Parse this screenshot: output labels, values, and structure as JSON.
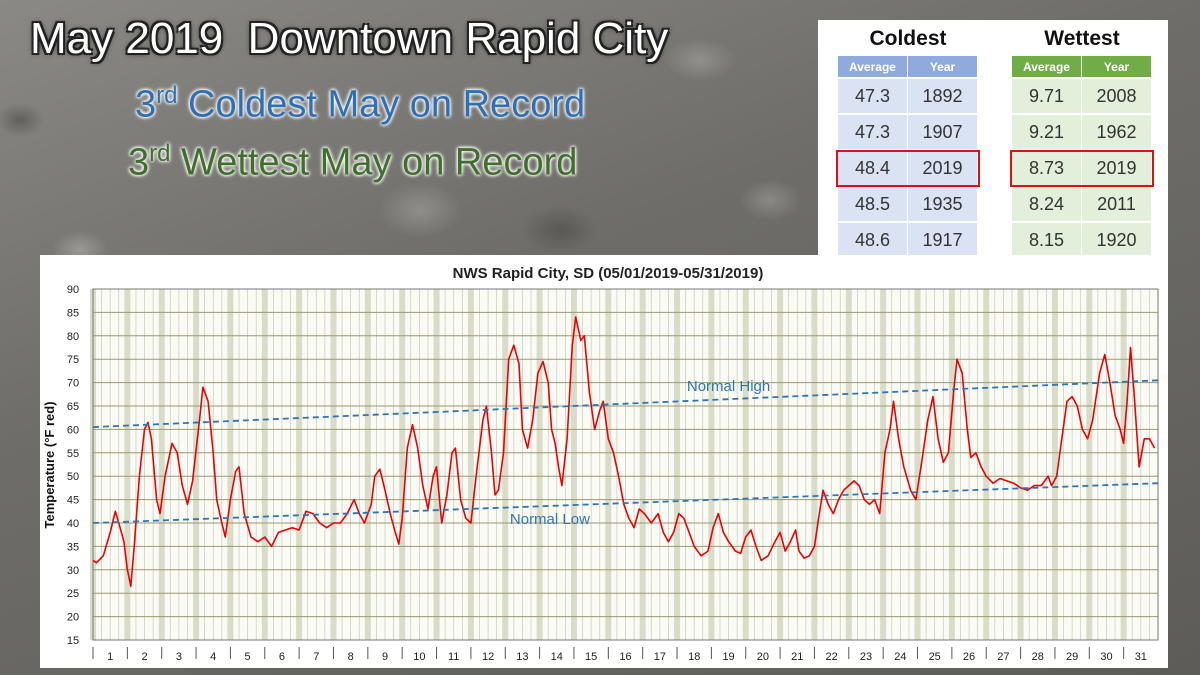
{
  "header": {
    "title": "May 2019  Downtown Rapid City",
    "lines": [
      {
        "number": "3",
        "suffix": "rd",
        "text": "Coldest May on Record"
      },
      {
        "number": "3",
        "suffix": "rd",
        "text": "Wettest May on Record"
      }
    ]
  },
  "tables": {
    "highlight_row": 2,
    "coldest": {
      "title": "Coldest",
      "columns": [
        "Average",
        "Year"
      ],
      "rows": [
        [
          "47.3",
          "1892"
        ],
        [
          "47.3",
          "1907"
        ],
        [
          "48.4",
          "2019"
        ],
        [
          "48.5",
          "1935"
        ],
        [
          "48.6",
          "1917"
        ]
      ]
    },
    "wettest": {
      "title": "Wettest",
      "columns": [
        "Average",
        "Year"
      ],
      "rows": [
        [
          "9.71",
          "2008"
        ],
        [
          "9.21",
          "1962"
        ],
        [
          "8.73",
          "2019"
        ],
        [
          "8.24",
          "2011"
        ],
        [
          "8.15",
          "1920"
        ]
      ]
    }
  },
  "chart_data": {
    "type": "line",
    "title": "NWS Rapid City, SD (05/01/2019-05/31/2019)",
    "y_label": "Temperature (°F red)",
    "xlim": [
      1,
      32
    ],
    "ylim": [
      15,
      90
    ],
    "yticks": [
      15,
      20,
      25,
      30,
      35,
      40,
      45,
      50,
      55,
      60,
      65,
      70,
      75,
      80,
      85,
      90
    ],
    "xticks": [
      {
        "value": 1.5,
        "label": "1"
      },
      {
        "value": 2.5,
        "label": "2"
      },
      {
        "value": 3.5,
        "label": "3"
      },
      {
        "value": 4.5,
        "label": "4"
      },
      {
        "value": 5.5,
        "label": "5"
      },
      {
        "value": 6.5,
        "label": "6"
      },
      {
        "value": 7.5,
        "label": "7"
      },
      {
        "value": 8.5,
        "label": "8"
      },
      {
        "value": 9.5,
        "label": "9"
      },
      {
        "value": 10.5,
        "label": "10"
      },
      {
        "value": 11.5,
        "label": "11"
      },
      {
        "value": 12.5,
        "label": "12"
      },
      {
        "value": 13.5,
        "label": "13"
      },
      {
        "value": 14.5,
        "label": "14"
      },
      {
        "value": 15.5,
        "label": "15"
      },
      {
        "value": 16.5,
        "label": "16"
      },
      {
        "value": 17.5,
        "label": "17"
      },
      {
        "value": 18.5,
        "label": "18"
      },
      {
        "value": 19.5,
        "label": "19"
      },
      {
        "value": 20.5,
        "label": "20"
      },
      {
        "value": 21.5,
        "label": "21"
      },
      {
        "value": 22.5,
        "label": "22"
      },
      {
        "value": 23.5,
        "label": "23"
      },
      {
        "value": 24.5,
        "label": "24"
      },
      {
        "value": 25.5,
        "label": "25"
      },
      {
        "value": 26.5,
        "label": "26"
      },
      {
        "value": 27.5,
        "label": "27"
      },
      {
        "value": 28.5,
        "label": "28"
      },
      {
        "value": 29.5,
        "label": "29"
      },
      {
        "value": 30.5,
        "label": "30"
      },
      {
        "value": 31.5,
        "label": "31"
      }
    ],
    "grid": true,
    "series": [
      {
        "color": "#ee0000",
        "x": [
          1,
          1.1,
          1.3,
          1.5,
          1.65,
          1.75,
          1.9,
          2,
          2.1,
          2.2,
          2.35,
          2.5,
          2.6,
          2.7,
          2.85,
          2.95,
          3.1,
          3.3,
          3.45,
          3.6,
          3.75,
          3.9,
          4.1,
          4.2,
          4.35,
          4.5,
          4.6,
          4.75,
          4.85,
          5,
          5.15,
          5.25,
          5.4,
          5.6,
          5.8,
          6,
          6.2,
          6.4,
          6.6,
          6.8,
          7,
          7.2,
          7.4,
          7.6,
          7.8,
          8,
          8.2,
          8.4,
          8.6,
          8.75,
          8.9,
          9.1,
          9.2,
          9.35,
          9.5,
          9.65,
          9.8,
          9.9,
          10,
          10.15,
          10.3,
          10.45,
          10.6,
          10.75,
          10.9,
          11,
          11.15,
          11.3,
          11.45,
          11.55,
          11.7,
          11.85,
          12,
          12.15,
          12.35,
          12.45,
          12.6,
          12.7,
          12.8,
          12.95,
          13.1,
          13.25,
          13.4,
          13.5,
          13.65,
          13.8,
          13.95,
          14.1,
          14.25,
          14.35,
          14.45,
          14.55,
          14.65,
          14.8,
          14.95,
          15.05,
          15.2,
          15.3,
          15.45,
          15.6,
          15.75,
          15.85,
          16,
          16.15,
          16.3,
          16.45,
          16.6,
          16.75,
          16.9,
          17.05,
          17.25,
          17.45,
          17.6,
          17.75,
          17.9,
          18.05,
          18.2,
          18.35,
          18.5,
          18.7,
          18.9,
          19.05,
          19.2,
          19.35,
          19.5,
          19.7,
          19.85,
          20,
          20.15,
          20.3,
          20.45,
          20.65,
          20.85,
          21,
          21.15,
          21.3,
          21.45,
          21.55,
          21.7,
          21.85,
          22,
          22.1,
          22.25,
          22.4,
          22.55,
          22.7,
          22.85,
          23,
          23.15,
          23.3,
          23.45,
          23.6,
          23.75,
          23.9,
          24.05,
          24.2,
          24.3,
          24.45,
          24.6,
          24.8,
          24.95,
          25.1,
          25.3,
          25.45,
          25.6,
          25.75,
          25.9,
          26.05,
          26.15,
          26.3,
          26.45,
          26.55,
          26.7,
          26.85,
          27,
          27.2,
          27.4,
          27.6,
          27.8,
          28,
          28.2,
          28.4,
          28.6,
          28.8,
          28.9,
          29.05,
          29.2,
          29.35,
          29.5,
          29.65,
          29.8,
          29.95,
          30.1,
          30.3,
          30.45,
          30.6,
          30.75,
          30.9,
          31,
          31.1,
          31.2,
          31.3,
          31.45,
          31.6,
          31.75,
          31.9
        ],
        "values": [
          32,
          31.5,
          33,
          38,
          42.5,
          40,
          36,
          30,
          26.5,
          35,
          50,
          60,
          61.5,
          58,
          45,
          42,
          50,
          57,
          55,
          48,
          44,
          49,
          62,
          69,
          66,
          55,
          45,
          40,
          37,
          45,
          51,
          52,
          42,
          37,
          36,
          37,
          35,
          38,
          38.5,
          39,
          38.5,
          42.5,
          42,
          40,
          39,
          40,
          40,
          42,
          45,
          42,
          40,
          44,
          50,
          51.5,
          47,
          42,
          38,
          35.5,
          41,
          56,
          61,
          56,
          48,
          43,
          50,
          52,
          40,
          46,
          55,
          56,
          45,
          41,
          40,
          50,
          62,
          65,
          55,
          46,
          47,
          55,
          75,
          78,
          74,
          60,
          56,
          62,
          72,
          74.5,
          70,
          60,
          57,
          52,
          48,
          58,
          78,
          84,
          79,
          80,
          68,
          60,
          64,
          66,
          58,
          55,
          50,
          44,
          41,
          39,
          43,
          42,
          40,
          42,
          38,
          36,
          38,
          42,
          41,
          38,
          35,
          33,
          34,
          39,
          42,
          38,
          36,
          34,
          33.5,
          37,
          38.5,
          35,
          32,
          33,
          36,
          38,
          34,
          36,
          38.5,
          34,
          32.5,
          33,
          35,
          40,
          47,
          44,
          42,
          45,
          47,
          48,
          49,
          48,
          45,
          44,
          45,
          42,
          55,
          60,
          66,
          58,
          52,
          47,
          45,
          52,
          62,
          67,
          58,
          53,
          55,
          68,
          75,
          72,
          60,
          54,
          55,
          52,
          50,
          48.5,
          49.5,
          49,
          48.5,
          47.5,
          47,
          48,
          48,
          50,
          48,
          50,
          58,
          66,
          67,
          65,
          60,
          58,
          62,
          72,
          76,
          70,
          63,
          60,
          57,
          66,
          77.5,
          68,
          52,
          58,
          58,
          56
        ]
      },
      {
        "name": "Normal High",
        "color": "#2e75b6",
        "dashed": true,
        "x": [
          1,
          32
        ],
        "values": [
          60.5,
          70.5
        ]
      },
      {
        "name": "Normal Low",
        "color": "#2e75b6",
        "dashed": true,
        "x": [
          1,
          32
        ],
        "values": [
          40,
          48.5
        ]
      }
    ]
  }
}
